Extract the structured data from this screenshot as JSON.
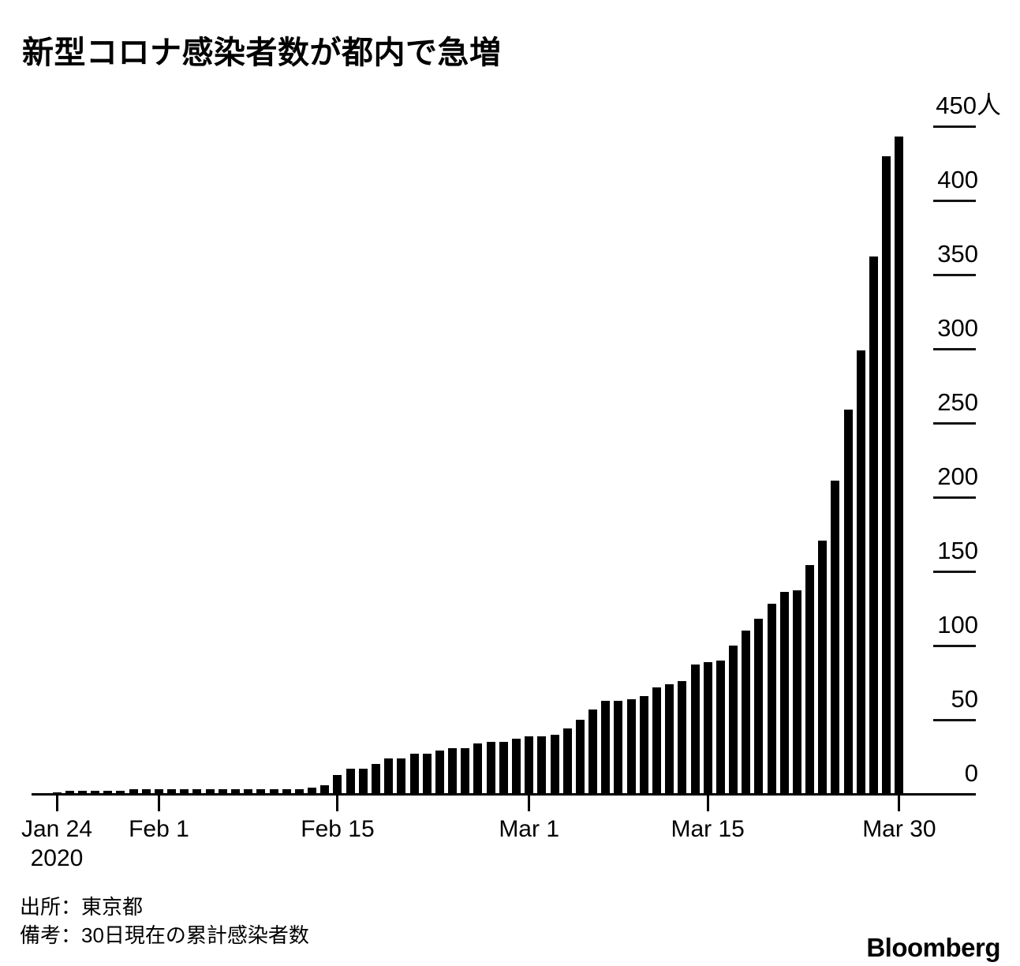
{
  "title": "新型コロナ感染者数が都内で急増",
  "footer": {
    "source": "出所：東京都",
    "note": "備考：30日現在の累計感染者数",
    "brand": "Bloomberg"
  },
  "colors": {
    "bar": "#000000",
    "axis": "#000000",
    "text": "#000000",
    "background": "#ffffff"
  },
  "chart_data": {
    "type": "bar",
    "title": "新型コロナ感染者数が都内で急増",
    "series_name": "累計感染者数",
    "unit_suffix": "人",
    "ylim": [
      0,
      450
    ],
    "grid": "off",
    "legend": "none",
    "y_axis_side": "right",
    "y_ticks": [
      0,
      50,
      100,
      150,
      200,
      250,
      300,
      350,
      400,
      450
    ],
    "y_tick_labels": [
      "0",
      "50",
      "100",
      "150",
      "200",
      "250",
      "300",
      "350",
      "400",
      "450人"
    ],
    "x_axis_ticks": [
      {
        "index": 0,
        "label": "Jan 24",
        "sublabel": "2020"
      },
      {
        "index": 8,
        "label": "Feb 1",
        "sublabel": ""
      },
      {
        "index": 22,
        "label": "Feb 15",
        "sublabel": ""
      },
      {
        "index": 37,
        "label": "Mar 1",
        "sublabel": ""
      },
      {
        "index": 51,
        "label": "Mar 15",
        "sublabel": ""
      },
      {
        "index": 66,
        "label": "Mar 30",
        "sublabel": ""
      }
    ],
    "categories": [
      "Jan 24",
      "Jan 25",
      "Jan 26",
      "Jan 27",
      "Jan 28",
      "Jan 29",
      "Jan 30",
      "Jan 31",
      "Feb 1",
      "Feb 2",
      "Feb 3",
      "Feb 4",
      "Feb 5",
      "Feb 6",
      "Feb 7",
      "Feb 8",
      "Feb 9",
      "Feb 10",
      "Feb 11",
      "Feb 12",
      "Feb 13",
      "Feb 14",
      "Feb 15",
      "Feb 16",
      "Feb 17",
      "Feb 18",
      "Feb 19",
      "Feb 20",
      "Feb 21",
      "Feb 22",
      "Feb 23",
      "Feb 24",
      "Feb 25",
      "Feb 26",
      "Feb 27",
      "Feb 28",
      "Feb 29",
      "Mar 1",
      "Mar 2",
      "Mar 3",
      "Mar 4",
      "Mar 5",
      "Mar 6",
      "Mar 7",
      "Mar 8",
      "Mar 9",
      "Mar 10",
      "Mar 11",
      "Mar 12",
      "Mar 13",
      "Mar 14",
      "Mar 15",
      "Mar 16",
      "Mar 17",
      "Mar 18",
      "Mar 19",
      "Mar 20",
      "Mar 21",
      "Mar 22",
      "Mar 23",
      "Mar 24",
      "Mar 25",
      "Mar 26",
      "Mar 27",
      "Mar 28",
      "Mar 29",
      "Mar 30"
    ],
    "values": [
      1,
      2,
      2,
      2,
      2,
      2,
      3,
      3,
      3,
      3,
      3,
      3,
      3,
      3,
      3,
      3,
      3,
      3,
      3,
      3,
      4,
      6,
      13,
      17,
      17,
      20,
      24,
      24,
      27,
      27,
      29,
      31,
      31,
      34,
      35,
      35,
      37,
      39,
      39,
      40,
      44,
      50,
      57,
      63,
      63,
      64,
      66,
      72,
      74,
      76,
      87,
      89,
      90,
      100,
      110,
      118,
      128,
      136,
      137,
      154,
      171,
      211,
      259,
      299,
      362,
      430,
      443
    ]
  }
}
